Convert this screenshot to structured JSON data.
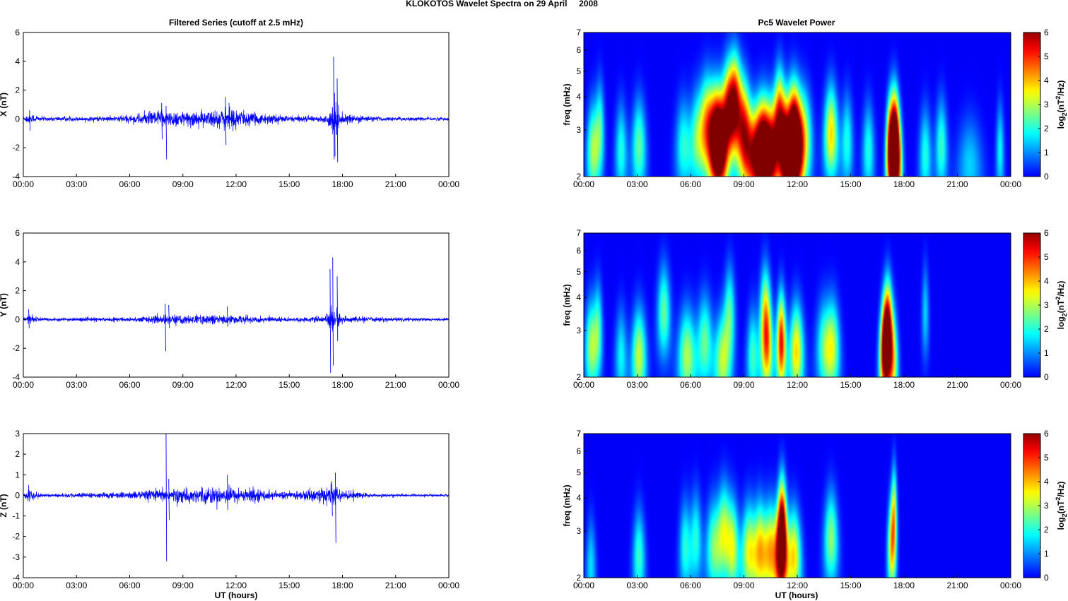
{
  "figure": {
    "suptitle": "KLOKOTOS Wavelet Spectra on 29 April     2008",
    "left_title": "Filtered Series (cutoff at 2.5 mHz)",
    "right_title": "Pc5 Wavelet Power",
    "xlabel": "UT (hours)",
    "freq_label": "freq (mHz)",
    "cbar_label": "log2(nT2/Hz)",
    "cbar_label_parts": [
      "log",
      "2",
      "(nT",
      "2",
      "/Hz)"
    ],
    "x_ticks": [
      "00:00",
      "03:00",
      "06:00",
      "09:00",
      "12:00",
      "15:00",
      "18:00",
      "21:00",
      "00:00"
    ],
    "trace_color": "#0000ff"
  },
  "chart_data": [
    {
      "type": "line",
      "name": "X filtered series",
      "ylabel": "X (nT)",
      "x_unit": "hours UT",
      "xlim": [
        0,
        24
      ],
      "ylim": [
        -4,
        6
      ],
      "y_ticks": [
        "-4",
        "-2",
        "0",
        "2",
        "4",
        "6"
      ],
      "y_tick_values": [
        -4,
        -2,
        0,
        2,
        4,
        6
      ],
      "noise_envelope": [
        [
          0,
          0.15
        ],
        [
          0.3,
          0.4
        ],
        [
          1,
          0.15
        ],
        [
          4,
          0.15
        ],
        [
          6,
          0.25
        ],
        [
          7.5,
          0.6
        ],
        [
          9,
          0.5
        ],
        [
          11,
          0.6
        ],
        [
          11.5,
          0.9
        ],
        [
          12.5,
          0.5
        ],
        [
          15,
          0.2
        ],
        [
          17,
          0.2
        ],
        [
          17.6,
          1.2
        ],
        [
          18,
          0.3
        ],
        [
          20,
          0.15
        ],
        [
          24,
          0.1
        ]
      ],
      "spikes": [
        [
          0.35,
          0.6,
          -0.8
        ],
        [
          7.8,
          1.1,
          -1.4
        ],
        [
          8.05,
          0.9,
          -2.8
        ],
        [
          11.4,
          1.5,
          -1.8
        ],
        [
          11.6,
          1.1,
          -0.7
        ],
        [
          17.5,
          4.3,
          -2.8
        ],
        [
          17.7,
          2.8,
          -3.0
        ],
        [
          17.55,
          1.8,
          -2.6
        ]
      ]
    },
    {
      "type": "line",
      "name": "Y filtered series",
      "ylabel": "Y (nT)",
      "x_unit": "hours UT",
      "xlim": [
        0,
        24
      ],
      "ylim": [
        -4,
        6
      ],
      "y_ticks": [
        "-4",
        "-2",
        "0",
        "2",
        "4",
        "6"
      ],
      "y_tick_values": [
        -4,
        -2,
        0,
        2,
        4,
        6
      ],
      "noise_envelope": [
        [
          0,
          0.12
        ],
        [
          0.3,
          0.35
        ],
        [
          1,
          0.12
        ],
        [
          6,
          0.15
        ],
        [
          8,
          0.3
        ],
        [
          11.5,
          0.3
        ],
        [
          15,
          0.15
        ],
        [
          17,
          0.2
        ],
        [
          17.5,
          1.0
        ],
        [
          18,
          0.2
        ],
        [
          24,
          0.08
        ]
      ],
      "spikes": [
        [
          0.3,
          0.7,
          -0.6
        ],
        [
          8.0,
          1.1,
          -2.2
        ],
        [
          8.2,
          1.0,
          -0.6
        ],
        [
          11.5,
          0.9,
          -0.5
        ],
        [
          17.3,
          3.5,
          -3.7
        ],
        [
          17.45,
          4.3,
          -3.2
        ],
        [
          17.7,
          3.0,
          -1.5
        ]
      ]
    },
    {
      "type": "line",
      "name": "Z filtered series",
      "ylabel": "Z (nT)",
      "x_unit": "hours UT",
      "xlim": [
        0,
        24
      ],
      "ylim": [
        -4,
        3
      ],
      "y_ticks": [
        "-4",
        "-3",
        "-2",
        "-1",
        "0",
        "1",
        "2",
        "3"
      ],
      "y_tick_values": [
        -4,
        -3,
        -2,
        -1,
        0,
        1,
        2,
        3
      ],
      "noise_envelope": [
        [
          0,
          0.08
        ],
        [
          0.3,
          0.3
        ],
        [
          1,
          0.08
        ],
        [
          5.5,
          0.15
        ],
        [
          8,
          0.3
        ],
        [
          11.5,
          0.4
        ],
        [
          13,
          0.3
        ],
        [
          15,
          0.15
        ],
        [
          17.5,
          0.5
        ],
        [
          18,
          0.2
        ],
        [
          18.5,
          0.2
        ],
        [
          20,
          0.08
        ],
        [
          24,
          0.06
        ]
      ],
      "spikes": [
        [
          0.3,
          0.5,
          -0.3
        ],
        [
          8.05,
          3.0,
          -3.2
        ],
        [
          8.2,
          0.8,
          -1.2
        ],
        [
          11.5,
          1.0,
          -0.7
        ],
        [
          17.6,
          1.1,
          -2.3
        ],
        [
          17.4,
          0.7,
          -1.0
        ],
        [
          18.6,
          0.3,
          -0.3
        ]
      ]
    },
    {
      "type": "heatmap",
      "name": "X Pc5 wavelet power",
      "ylabel": "freq (mHz)",
      "y_scale": "log",
      "xlim": [
        0,
        24
      ],
      "ylim": [
        2,
        7
      ],
      "y_ticks": [
        "2",
        "3",
        "4",
        "5",
        "6",
        "7"
      ],
      "y_tick_values": [
        2,
        3,
        4,
        5,
        6,
        7
      ],
      "colorbar": {
        "range": [
          0,
          6
        ],
        "ticks": [
          "0",
          "1",
          "2",
          "3",
          "4",
          "5",
          "6"
        ],
        "colormap": "jet"
      },
      "blobs": [
        [
          0.5,
          2.5,
          0.15,
          2.8
        ],
        [
          0.9,
          3.0,
          0.12,
          2.2
        ],
        [
          2.1,
          2.5,
          0.15,
          2.0
        ],
        [
          3.1,
          2.6,
          0.18,
          2.5
        ],
        [
          5.6,
          2.6,
          0.2,
          2.0
        ],
        [
          6.4,
          2.8,
          0.2,
          2.5
        ],
        [
          6.9,
          3.2,
          0.18,
          3.0
        ],
        [
          7.4,
          3.0,
          0.22,
          4.2
        ],
        [
          7.6,
          2.5,
          0.2,
          6.0
        ],
        [
          8.1,
          3.5,
          0.18,
          4.5
        ],
        [
          8.5,
          3.8,
          0.18,
          5.2
        ],
        [
          9.0,
          3.1,
          0.18,
          4.0
        ],
        [
          9.6,
          2.4,
          0.3,
          5.0
        ],
        [
          10.1,
          2.6,
          0.2,
          5.2
        ],
        [
          10.6,
          2.5,
          0.2,
          4.6
        ],
        [
          11.0,
          3.3,
          0.15,
          4.8
        ],
        [
          11.3,
          2.5,
          0.12,
          4.2
        ],
        [
          11.8,
          3.0,
          0.2,
          5.4
        ],
        [
          11.8,
          2.4,
          0.2,
          5.6
        ],
        [
          12.4,
          2.8,
          0.2,
          3.0
        ],
        [
          13.9,
          2.9,
          0.18,
          3.8
        ],
        [
          14.8,
          2.7,
          0.15,
          2.0
        ],
        [
          16.0,
          2.5,
          0.15,
          2.0
        ],
        [
          17.2,
          2.5,
          0.1,
          4.8
        ],
        [
          17.45,
          2.8,
          0.12,
          6.2
        ],
        [
          17.6,
          2.3,
          0.12,
          5.0
        ],
        [
          19.2,
          2.4,
          0.15,
          2.0
        ],
        [
          20.1,
          2.6,
          0.15,
          2.2
        ],
        [
          21.7,
          2.2,
          0.3,
          1.5
        ],
        [
          23.4,
          2.5,
          0.1,
          1.8
        ]
      ]
    },
    {
      "type": "heatmap",
      "name": "Y Pc5 wavelet power",
      "ylabel": "freq (mHz)",
      "y_scale": "log",
      "xlim": [
        0,
        24
      ],
      "ylim": [
        2,
        7
      ],
      "y_ticks": [
        "2",
        "3",
        "4",
        "5",
        "6",
        "7"
      ],
      "y_tick_values": [
        2,
        3,
        4,
        5,
        6,
        7
      ],
      "colorbar": {
        "range": [
          0,
          6
        ],
        "ticks": [
          "0",
          "1",
          "2",
          "3",
          "4",
          "5",
          "6"
        ],
        "colormap": "jet"
      },
      "blobs": [
        [
          0.4,
          2.6,
          0.15,
          2.8
        ],
        [
          0.8,
          3.0,
          0.12,
          2.2
        ],
        [
          2.1,
          2.4,
          0.15,
          1.8
        ],
        [
          3.1,
          2.4,
          0.18,
          3.2
        ],
        [
          4.5,
          3.5,
          0.18,
          2.5
        ],
        [
          5.8,
          2.4,
          0.22,
          3.0
        ],
        [
          6.8,
          2.7,
          0.2,
          2.5
        ],
        [
          7.8,
          2.3,
          0.2,
          3.0
        ],
        [
          8.2,
          3.5,
          0.15,
          2.2
        ],
        [
          9.5,
          2.4,
          0.15,
          2.2
        ],
        [
          10.2,
          3.5,
          0.15,
          3.0
        ],
        [
          10.3,
          2.5,
          0.15,
          3.5
        ],
        [
          11.1,
          2.7,
          0.12,
          5.4
        ],
        [
          11.95,
          2.5,
          0.18,
          3.8
        ],
        [
          13.5,
          2.6,
          0.2,
          2.2
        ],
        [
          14.0,
          2.6,
          0.18,
          2.8
        ],
        [
          16.9,
          2.5,
          0.12,
          5.5
        ],
        [
          17.1,
          3.0,
          0.12,
          6.0
        ],
        [
          17.4,
          2.3,
          0.12,
          3.0
        ],
        [
          19.2,
          3.5,
          0.1,
          1.5
        ]
      ]
    },
    {
      "type": "heatmap",
      "name": "Z Pc5 wavelet power",
      "ylabel": "freq (mHz)",
      "y_scale": "log",
      "xlim": [
        0,
        24
      ],
      "ylim": [
        2,
        7
      ],
      "y_ticks": [
        "2",
        "3",
        "4",
        "5",
        "6",
        "7"
      ],
      "y_tick_values": [
        2,
        3,
        4,
        5,
        6,
        7
      ],
      "colorbar": {
        "range": [
          0,
          6
        ],
        "ticks": [
          "0",
          "1",
          "2",
          "3",
          "4",
          "5",
          "6"
        ],
        "colormap": "jet"
      },
      "blobs": [
        [
          0.4,
          2.2,
          0.12,
          1.6
        ],
        [
          3.1,
          2.4,
          0.15,
          2.2
        ],
        [
          5.7,
          2.6,
          0.15,
          2.0
        ],
        [
          6.3,
          2.8,
          0.15,
          2.0
        ],
        [
          7.3,
          2.6,
          0.2,
          2.5
        ],
        [
          7.9,
          3.0,
          0.18,
          3.0
        ],
        [
          8.4,
          2.6,
          0.15,
          2.8
        ],
        [
          9.3,
          2.5,
          0.2,
          3.5
        ],
        [
          9.9,
          2.6,
          0.15,
          3.0
        ],
        [
          10.5,
          2.5,
          0.2,
          4.0
        ],
        [
          11.1,
          2.5,
          0.14,
          5.2
        ],
        [
          11.15,
          3.2,
          0.12,
          4.6
        ],
        [
          11.8,
          2.4,
          0.18,
          3.8
        ],
        [
          13.9,
          2.8,
          0.18,
          2.8
        ],
        [
          17.3,
          2.6,
          0.1,
          3.6
        ],
        [
          17.45,
          3.5,
          0.08,
          3.0
        ]
      ]
    }
  ]
}
